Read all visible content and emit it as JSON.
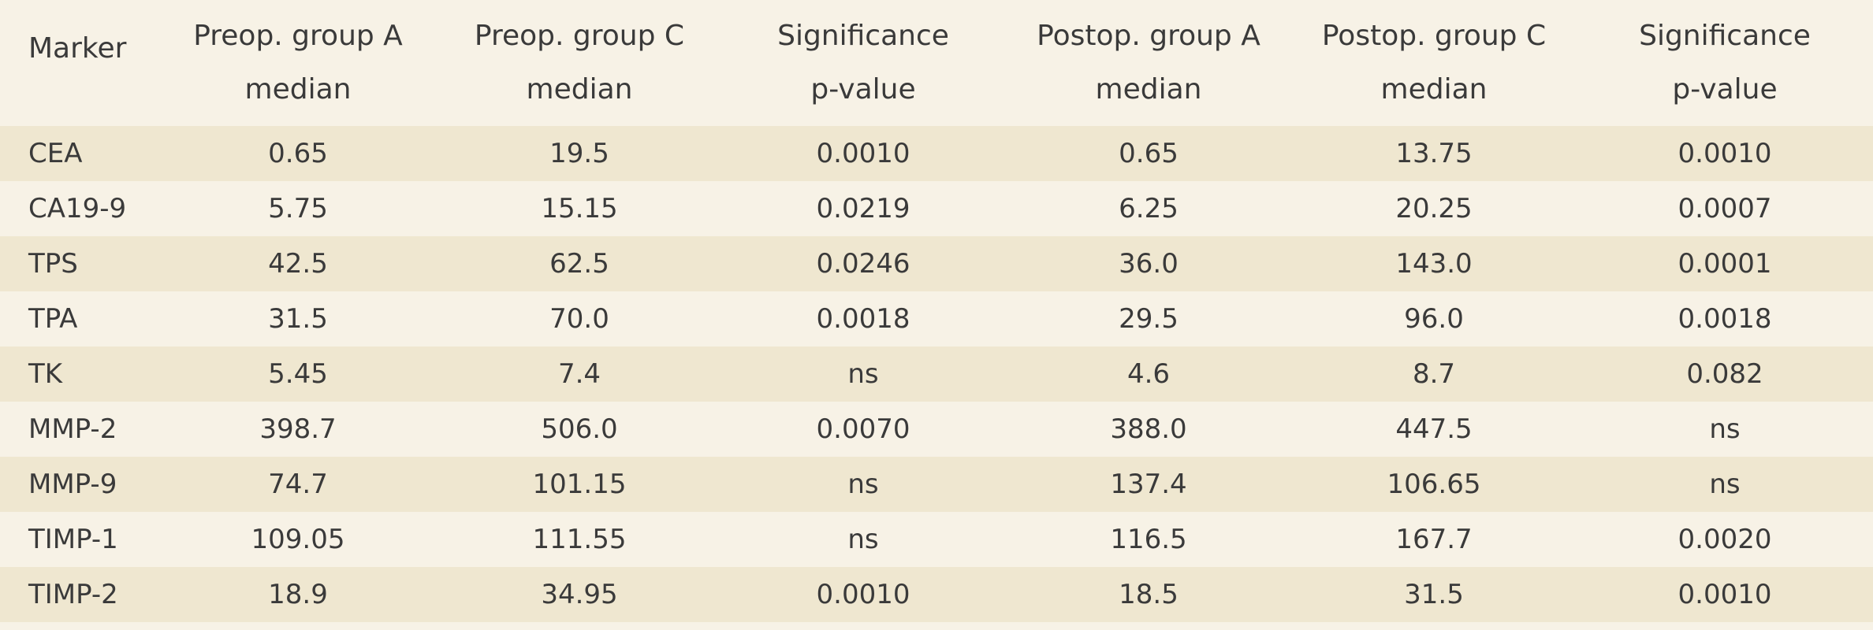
{
  "table": {
    "headers": [
      {
        "line1": "Marker",
        "line2": ""
      },
      {
        "line1": "Preop. group A",
        "line2": "median"
      },
      {
        "line1": "Preop. group C",
        "line2": "median"
      },
      {
        "line1": "Significance",
        "line2": "p-value"
      },
      {
        "line1": "Postop. group A",
        "line2": "median"
      },
      {
        "line1": "Postop. group C",
        "line2": "median"
      },
      {
        "line1": "Significance",
        "line2": "p-value"
      }
    ],
    "rows": [
      [
        "CEA",
        "0.65",
        "19.5",
        "0.0010",
        "0.65",
        "13.75",
        "0.0010"
      ],
      [
        "CA19-9",
        "5.75",
        "15.15",
        "0.0219",
        "6.25",
        "20.25",
        "0.0007"
      ],
      [
        "TPS",
        "42.5",
        "62.5",
        "0.0246",
        "36.0",
        "143.0",
        "0.0001"
      ],
      [
        "TPA",
        "31.5",
        "70.0",
        "0.0018",
        "29.5",
        "96.0",
        "0.0018"
      ],
      [
        "TK",
        "5.45",
        "7.4",
        "ns",
        "4.6",
        "8.7",
        "0.082"
      ],
      [
        "MMP-2",
        "398.7",
        "506.0",
        "0.0070",
        "388.0",
        "447.5",
        "ns"
      ],
      [
        "MMP-9",
        "74.7",
        "101.15",
        "ns",
        "137.4",
        "106.65",
        "ns"
      ],
      [
        "TIMP-1",
        "109.05",
        "111.55",
        "ns",
        "116.5",
        "167.7",
        "0.0020"
      ],
      [
        "TIMP-2",
        "18.9",
        "34.95",
        "0.0010",
        "18.5",
        "31.5",
        "0.0010"
      ]
    ]
  },
  "colors": {
    "background": "#f7f2e6",
    "stripe": "#efe7d0",
    "text": "#3a3a3a"
  }
}
